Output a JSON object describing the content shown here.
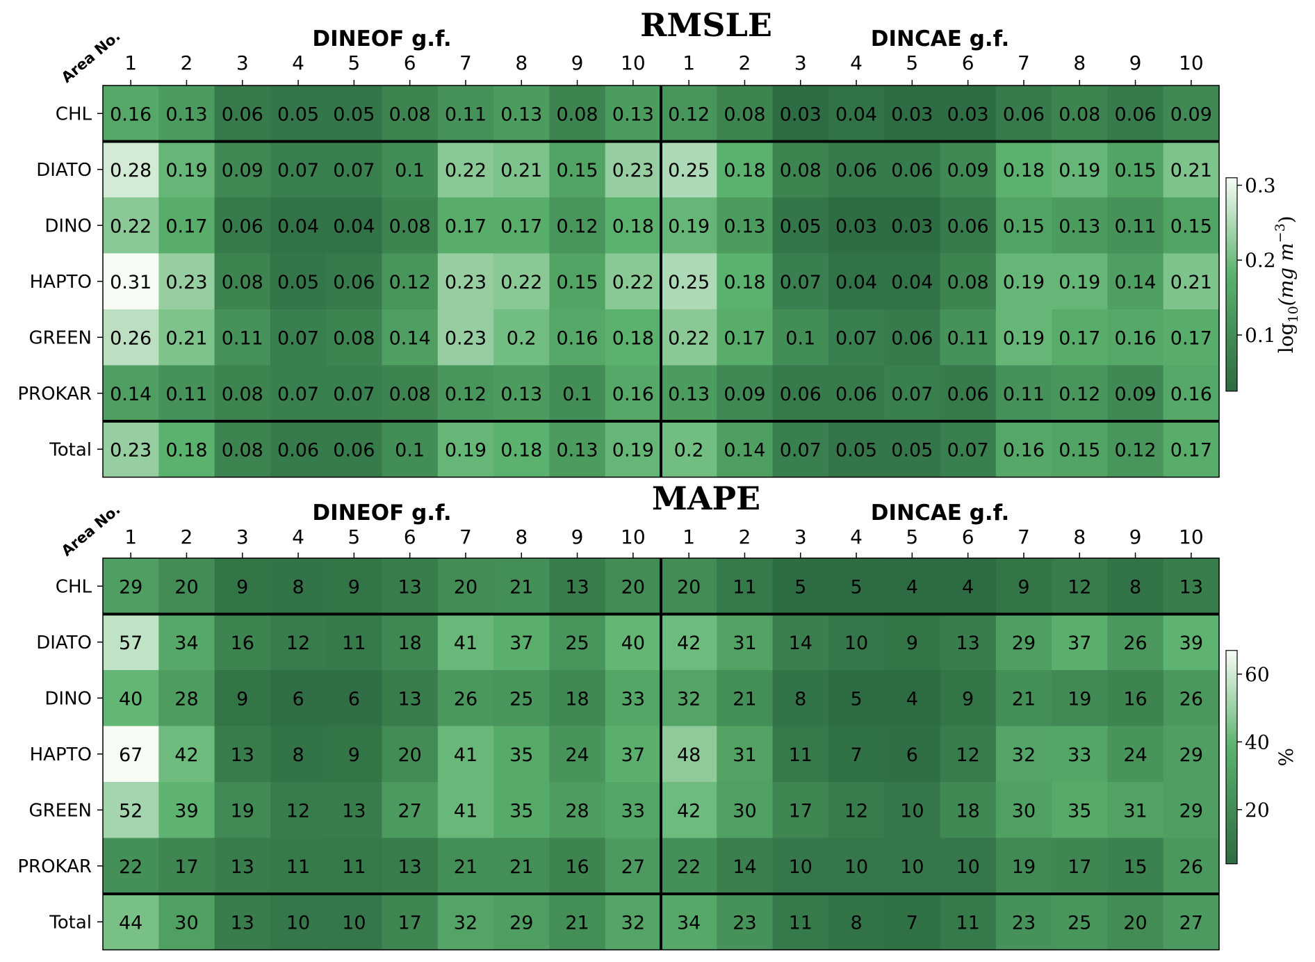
{
  "chart_data": [
    {
      "type": "heatmap",
      "title": "RMSLE",
      "corner_label": "Area No.",
      "groups": [
        {
          "label": "DINEOF g.f.",
          "columns": [
            "1",
            "2",
            "3",
            "4",
            "5",
            "6",
            "7",
            "8",
            "9",
            "10"
          ]
        },
        {
          "label": "DINCAE g.f.",
          "columns": [
            "1",
            "2",
            "3",
            "4",
            "5",
            "6",
            "7",
            "8",
            "9",
            "10"
          ]
        }
      ],
      "rows": [
        "CHL",
        "DIATO",
        "DINO",
        "HAPTO",
        "GREEN",
        "PROKAR",
        "Total"
      ],
      "values": [
        [
          "0.16",
          "0.13",
          "0.06",
          "0.05",
          "0.05",
          "0.08",
          "0.11",
          "0.13",
          "0.08",
          "0.13",
          "0.12",
          "0.08",
          "0.03",
          "0.04",
          "0.03",
          "0.03",
          "0.06",
          "0.08",
          "0.06",
          "0.09"
        ],
        [
          "0.28",
          "0.19",
          "0.09",
          "0.07",
          "0.07",
          "0.1",
          "0.22",
          "0.21",
          "0.15",
          "0.23",
          "0.25",
          "0.18",
          "0.08",
          "0.06",
          "0.06",
          "0.09",
          "0.18",
          "0.19",
          "0.15",
          "0.21"
        ],
        [
          "0.22",
          "0.17",
          "0.06",
          "0.04",
          "0.04",
          "0.08",
          "0.17",
          "0.17",
          "0.12",
          "0.18",
          "0.19",
          "0.13",
          "0.05",
          "0.03",
          "0.03",
          "0.06",
          "0.15",
          "0.13",
          "0.11",
          "0.15"
        ],
        [
          "0.31",
          "0.23",
          "0.08",
          "0.05",
          "0.06",
          "0.12",
          "0.23",
          "0.22",
          "0.15",
          "0.22",
          "0.25",
          "0.18",
          "0.07",
          "0.04",
          "0.04",
          "0.08",
          "0.19",
          "0.19",
          "0.14",
          "0.21"
        ],
        [
          "0.26",
          "0.21",
          "0.11",
          "0.07",
          "0.08",
          "0.14",
          "0.23",
          "0.2",
          "0.16",
          "0.18",
          "0.22",
          "0.17",
          "0.1",
          "0.07",
          "0.06",
          "0.11",
          "0.19",
          "0.17",
          "0.16",
          "0.17"
        ],
        [
          "0.14",
          "0.11",
          "0.08",
          "0.07",
          "0.07",
          "0.08",
          "0.12",
          "0.13",
          "0.1",
          "0.16",
          "0.13",
          "0.09",
          "0.06",
          "0.06",
          "0.07",
          "0.06",
          "0.11",
          "0.12",
          "0.09",
          "0.16"
        ],
        [
          "0.23",
          "0.18",
          "0.08",
          "0.06",
          "0.06",
          "0.1",
          "0.19",
          "0.18",
          "0.13",
          "0.19",
          "0.2",
          "0.14",
          "0.07",
          "0.05",
          "0.05",
          "0.07",
          "0.16",
          "0.15",
          "0.12",
          "0.17"
        ]
      ],
      "color_range": [
        0.025,
        0.31
      ],
      "colorbar": {
        "ticks": [
          {
            "value": 0.1,
            "label": "0.1"
          },
          {
            "value": 0.2,
            "label": "0.2"
          },
          {
            "value": 0.3,
            "label": "0.3"
          }
        ],
        "label_base": "log",
        "label_sub": "10",
        "label_rest": "(mg m",
        "label_sup": "−3",
        "label_close": ")"
      },
      "colors": {
        "low": "#2d6b42",
        "mid": "#5cb26e",
        "high": "#f7fcf5"
      }
    },
    {
      "type": "heatmap",
      "title": "MAPE",
      "corner_label": "Area No.",
      "groups": [
        {
          "label": "DINEOF g.f.",
          "columns": [
            "1",
            "2",
            "3",
            "4",
            "5",
            "6",
            "7",
            "8",
            "9",
            "10"
          ]
        },
        {
          "label": "DINCAE g.f.",
          "columns": [
            "1",
            "2",
            "3",
            "4",
            "5",
            "6",
            "7",
            "8",
            "9",
            "10"
          ]
        }
      ],
      "rows": [
        "CHL",
        "DIATO",
        "DINO",
        "HAPTO",
        "GREEN",
        "PROKAR",
        "Total"
      ],
      "values": [
        [
          "29",
          "20",
          "9",
          "8",
          "9",
          "13",
          "20",
          "21",
          "13",
          "20",
          "20",
          "11",
          "5",
          "5",
          "4",
          "4",
          "9",
          "12",
          "8",
          "13"
        ],
        [
          "57",
          "34",
          "16",
          "12",
          "11",
          "18",
          "41",
          "37",
          "25",
          "40",
          "42",
          "31",
          "14",
          "10",
          "9",
          "13",
          "29",
          "37",
          "26",
          "39"
        ],
        [
          "40",
          "28",
          "9",
          "6",
          "6",
          "13",
          "26",
          "25",
          "18",
          "33",
          "32",
          "21",
          "8",
          "5",
          "4",
          "9",
          "21",
          "19",
          "16",
          "26"
        ],
        [
          "67",
          "42",
          "13",
          "8",
          "9",
          "20",
          "41",
          "35",
          "24",
          "37",
          "48",
          "31",
          "11",
          "7",
          "6",
          "12",
          "32",
          "33",
          "24",
          "29"
        ],
        [
          "52",
          "39",
          "19",
          "12",
          "13",
          "27",
          "41",
          "35",
          "28",
          "33",
          "42",
          "30",
          "17",
          "12",
          "10",
          "18",
          "30",
          "35",
          "31",
          "29"
        ],
        [
          "22",
          "17",
          "13",
          "11",
          "11",
          "13",
          "21",
          "21",
          "16",
          "27",
          "22",
          "14",
          "10",
          "10",
          "10",
          "10",
          "19",
          "17",
          "15",
          "26"
        ],
        [
          "44",
          "30",
          "13",
          "10",
          "10",
          "17",
          "32",
          "29",
          "21",
          "32",
          "34",
          "23",
          "11",
          "8",
          "7",
          "11",
          "23",
          "25",
          "20",
          "27"
        ]
      ],
      "color_range": [
        4,
        67
      ],
      "colorbar": {
        "ticks": [
          {
            "value": 20,
            "label": "20"
          },
          {
            "value": 40,
            "label": "40"
          },
          {
            "value": 60,
            "label": "60"
          }
        ],
        "label": "%"
      },
      "colors": {
        "low": "#2d6b42",
        "mid": "#5cb26e",
        "high": "#f7fcf5"
      }
    }
  ]
}
